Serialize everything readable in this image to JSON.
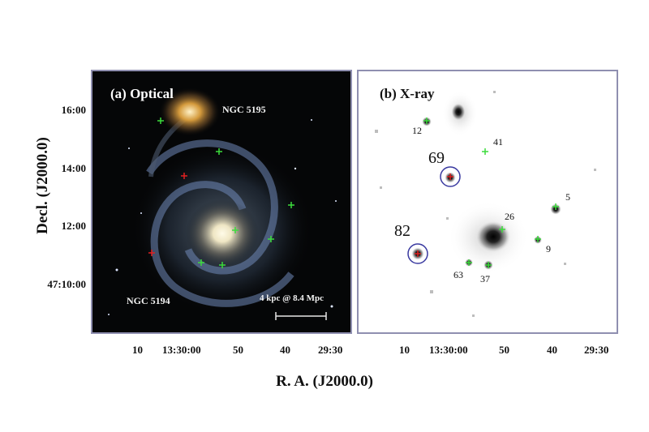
{
  "panel_a": {
    "label": "(a) Optical",
    "companion_name": "NGC 5195",
    "main_name": "NGC 5194",
    "scale_text": "4 kpc @ 8.4 Mpc"
  },
  "panel_b": {
    "label": "(b) X-ray",
    "sources": [
      "12",
      "41",
      "69",
      "5",
      "26",
      "82",
      "9",
      "63",
      "37"
    ]
  },
  "y_ticks": [
    "16:00",
    "14:00",
    "12:00",
    "47:10:00"
  ],
  "x_ticks_a": [
    "10",
    "13:30:00",
    "50",
    "40",
    "29:30"
  ],
  "x_ticks_b": [
    "10",
    "13:30:00",
    "50",
    "40",
    "29:30"
  ],
  "ylabel": "Decl. (J2000.0)",
  "xlabel": "R. A. (J2000.0)",
  "colors": {
    "frame": "#8f8fb0",
    "marker_green": "#3cdc3c",
    "marker_red": "#e02020",
    "circle": "#3a3aa0"
  }
}
